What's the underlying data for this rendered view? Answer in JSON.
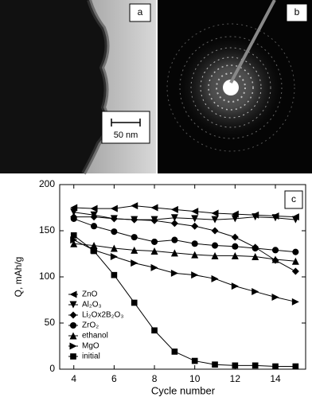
{
  "images": [
    {
      "label": "a",
      "scale_bar": "50 nm"
    },
    {
      "label": "b"
    }
  ],
  "chart_data": {
    "type": "line",
    "label": "c",
    "x_label": "Cycle number",
    "y_label": "Q, mAh/g",
    "x": [
      4,
      5,
      6,
      7,
      8,
      9,
      10,
      11,
      12,
      13,
      14,
      15
    ],
    "xlim": [
      3.3,
      15.5
    ],
    "xticks": [
      4,
      6,
      8,
      10,
      12,
      14
    ],
    "ylim": [
      0,
      200
    ],
    "yticks": [
      0,
      50,
      100,
      150,
      200
    ],
    "series": [
      {
        "name": "ZnO",
        "color": "#000000",
        "marker": "triangle-left",
        "values": [
          175,
          174,
          174,
          177,
          175,
          173,
          171,
          169,
          168,
          167,
          166,
          165
        ]
      },
      {
        "name": "Al₂O₃",
        "color": "#000000",
        "marker": "triangle-down",
        "values": [
          170,
          167,
          163,
          162,
          162,
          164,
          163,
          162,
          163,
          165,
          164,
          162
        ]
      },
      {
        "name": "Li₂Ox2B₂O₃",
        "color": "#000000",
        "marker": "diamond",
        "values": [
          165,
          165,
          163,
          162,
          161,
          158,
          155,
          150,
          143,
          132,
          118,
          106
        ]
      },
      {
        "name": "ZrO₂",
        "color": "#000000",
        "marker": "circle",
        "values": [
          163,
          155,
          149,
          143,
          138,
          140,
          136,
          134,
          133,
          131,
          129,
          127
        ]
      },
      {
        "name": "ethanol",
        "color": "#000000",
        "marker": "triangle-up",
        "values": [
          136,
          134,
          131,
          129,
          128,
          126,
          124,
          123,
          123,
          122,
          119,
          117
        ]
      },
      {
        "name": "MgO",
        "color": "#000000",
        "marker": "triangle-right",
        "values": [
          140,
          129,
          122,
          115,
          110,
          104,
          102,
          98,
          90,
          84,
          78,
          73
        ]
      },
      {
        "name": "initial",
        "color": "#000000",
        "marker": "square",
        "values": [
          145,
          128,
          102,
          72,
          42,
          19,
          9,
          5,
          4,
          4,
          3,
          3
        ]
      }
    ]
  }
}
